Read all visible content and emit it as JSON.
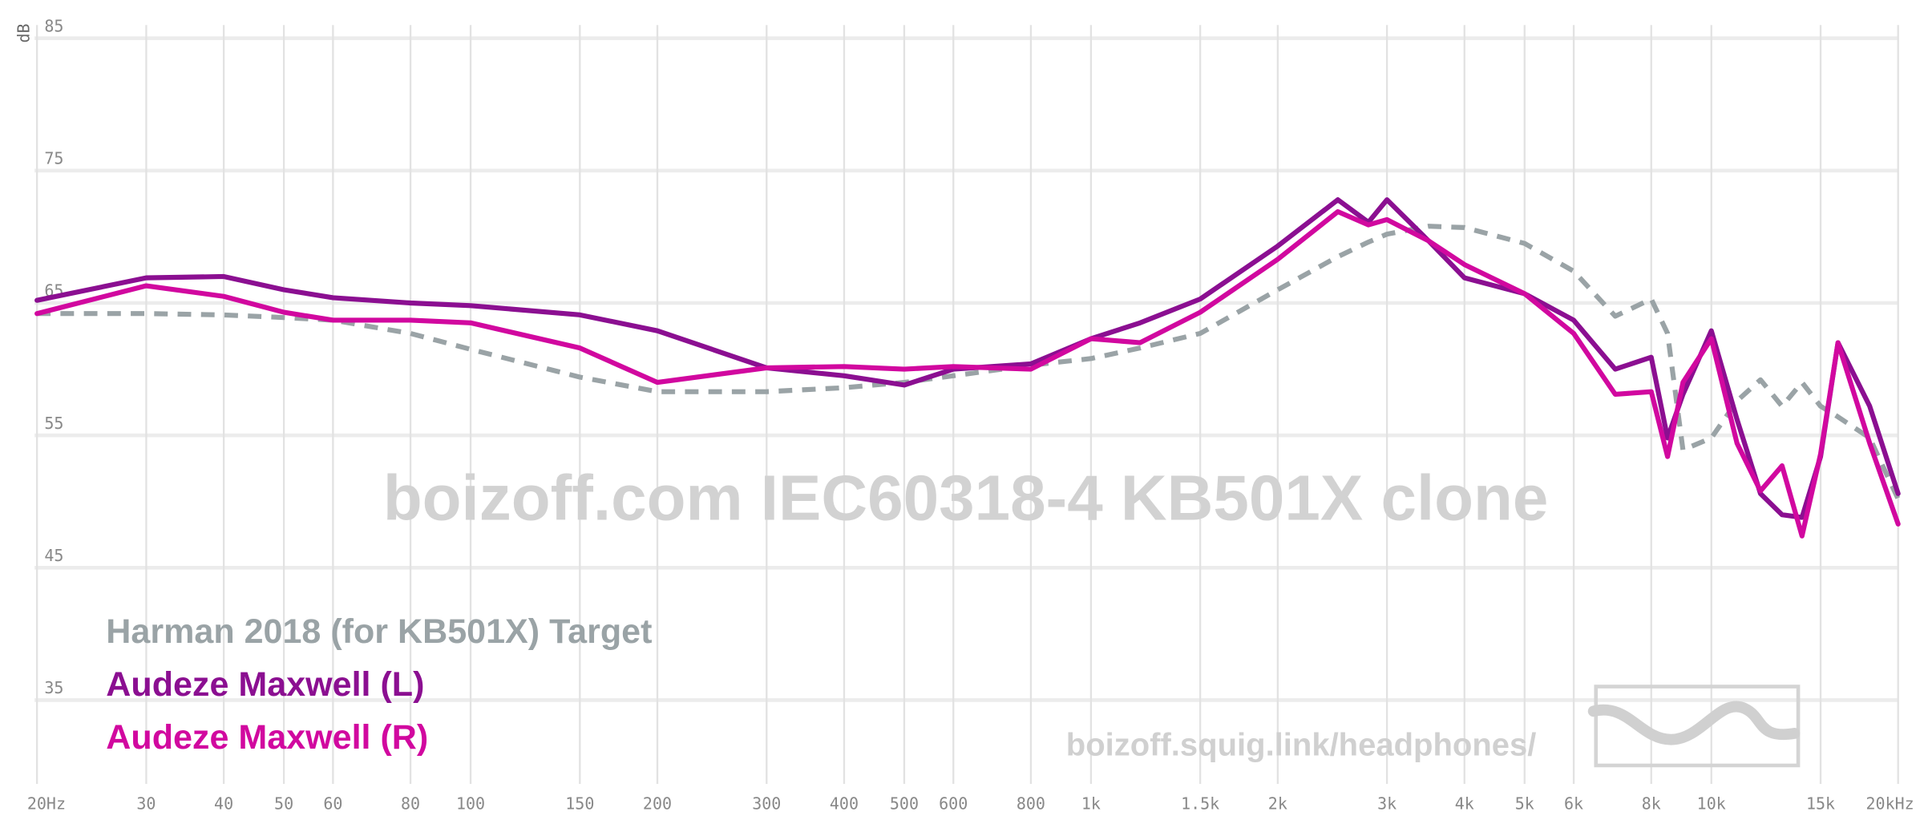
{
  "chart_data": {
    "type": "line",
    "y_label": "dB",
    "watermark": "boizoff.com IEC60318-4 KB501X clone",
    "url": "boizoff.squig.link/headphones/",
    "x_scale": "log",
    "grid": true,
    "legend": "bottom-left",
    "xlim": [
      20,
      20000
    ],
    "ylim": [
      29,
      86
    ],
    "yticks": [
      35,
      45,
      55,
      65,
      75,
      85
    ],
    "xticks": [
      {
        "value": 20,
        "label": "20Hz"
      },
      30,
      40,
      50,
      60,
      80,
      100,
      150,
      200,
      300,
      400,
      500,
      600,
      800,
      {
        "value": 1000,
        "label": "1k"
      },
      {
        "value": 1500,
        "label": "1.5k"
      },
      {
        "value": 2000,
        "label": "2k"
      },
      {
        "value": 3000,
        "label": "3k"
      },
      {
        "value": 4000,
        "label": "4k"
      },
      {
        "value": 5000,
        "label": "5k"
      },
      {
        "value": 6000,
        "label": "6k"
      },
      {
        "value": 8000,
        "label": "8k"
      },
      {
        "value": 10000,
        "label": "10k"
      },
      {
        "value": 15000,
        "label": "15k"
      },
      {
        "value": 20000,
        "label": "20kHz"
      }
    ],
    "x": [
      20,
      30,
      40,
      50,
      60,
      80,
      100,
      150,
      200,
      300,
      400,
      500,
      600,
      800,
      1000,
      1200,
      1500,
      2000,
      2500,
      2800,
      3000,
      3500,
      4000,
      5000,
      6000,
      7000,
      8000,
      8500,
      9000,
      10000,
      11000,
      12000,
      13000,
      14000,
      15000,
      16000,
      18000,
      20000
    ],
    "series": [
      {
        "name": "Harman 2018 (for KB501X) Target",
        "color": "#9aa3a6",
        "style": "dashed",
        "values": [
          64.2,
          64.2,
          64.1,
          63.9,
          63.7,
          62.7,
          61.5,
          59.4,
          58.3,
          58.3,
          58.6,
          59.0,
          59.5,
          60.3,
          60.8,
          61.6,
          62.7,
          66.0,
          68.5,
          69.6,
          70.2,
          70.8,
          70.7,
          69.5,
          67.4,
          64.0,
          65.3,
          62.7,
          53.9,
          54.8,
          57.6,
          59.2,
          57.2,
          59.0,
          57.2,
          56.4,
          54.8,
          50.2
        ]
      },
      {
        "name": "Audeze Maxwell (L)",
        "color": "#8b0f91",
        "style": "solid",
        "values": [
          65.2,
          66.9,
          67.0,
          66.0,
          65.4,
          65.0,
          64.8,
          64.1,
          62.9,
          60.1,
          59.5,
          58.8,
          60.0,
          60.4,
          62.3,
          63.5,
          65.3,
          69.3,
          72.8,
          71.1,
          72.8,
          69.7,
          66.9,
          65.7,
          63.7,
          60.0,
          60.9,
          54.8,
          58.1,
          62.9,
          56.2,
          50.6,
          49.0,
          48.8,
          53.4,
          62.0,
          57.2,
          50.6
        ]
      },
      {
        "name": "Audeze Maxwell (R)",
        "color": "#d1089f",
        "style": "solid",
        "values": [
          64.2,
          66.3,
          65.5,
          64.3,
          63.7,
          63.7,
          63.5,
          61.6,
          59.0,
          60.1,
          60.2,
          60.0,
          60.2,
          60.0,
          62.3,
          62.0,
          64.3,
          68.3,
          71.9,
          70.9,
          71.3,
          69.7,
          67.9,
          65.7,
          62.7,
          58.1,
          58.3,
          53.4,
          59.0,
          62.3,
          54.4,
          50.8,
          52.7,
          47.4,
          53.6,
          62.0,
          54.4,
          48.3
        ]
      }
    ]
  }
}
